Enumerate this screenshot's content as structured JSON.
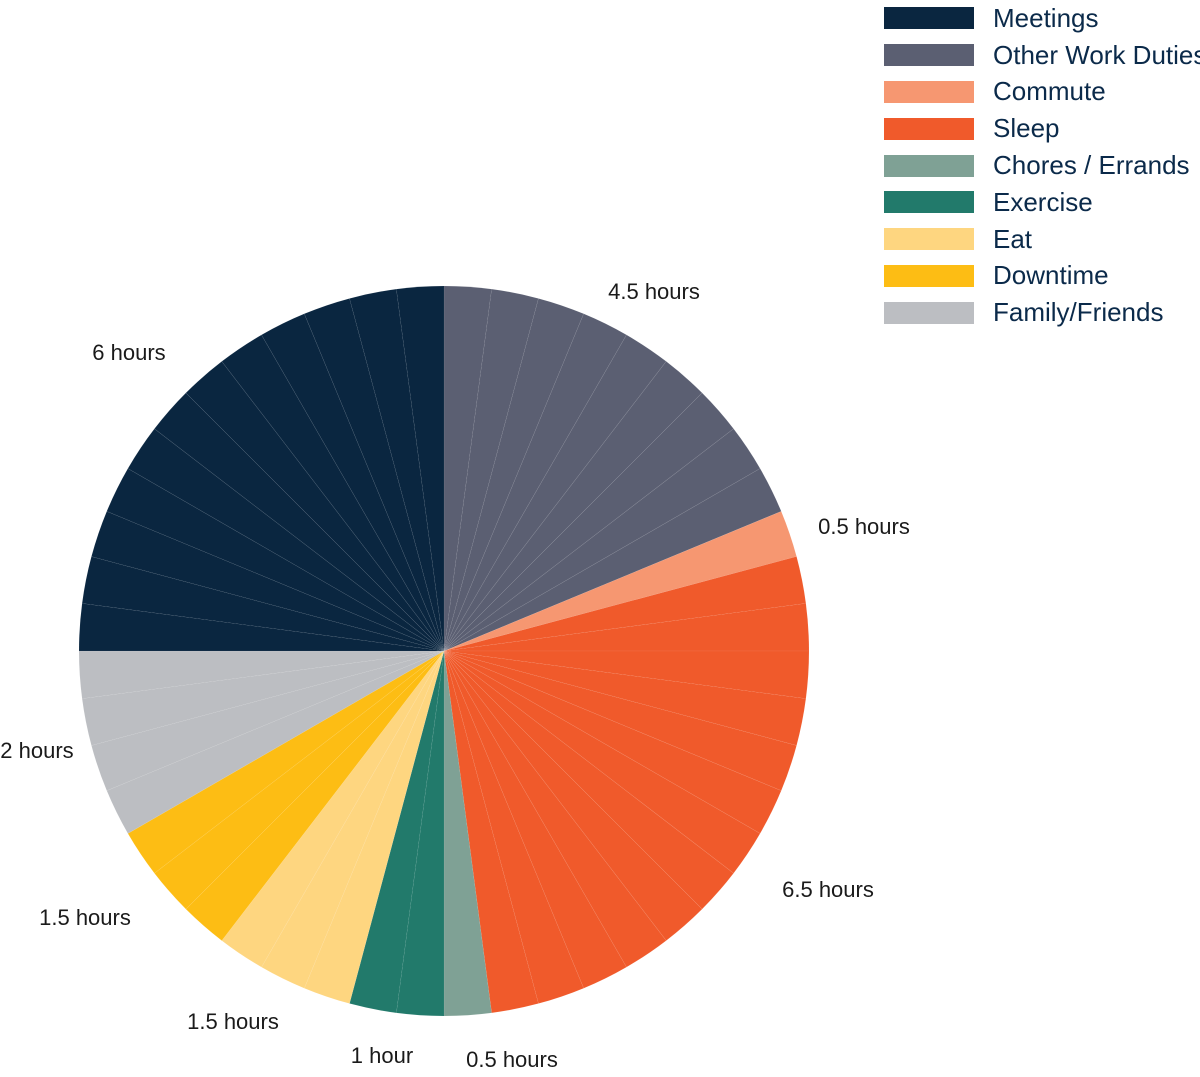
{
  "chart_data": {
    "type": "pie",
    "unit": "hours",
    "start_angle_deg": 0,
    "direction": "clockwise",
    "sub_slice_hours": 0.5,
    "legend_position": "top-right",
    "slices": [
      {
        "name": "Other Work Duties",
        "value": 4.5,
        "color": "#5b5f72",
        "label": "4.5 hours"
      },
      {
        "name": "Commute",
        "value": 0.5,
        "color": "#f69771",
        "label": "0.5 hours"
      },
      {
        "name": "Sleep",
        "value": 6.5,
        "color": "#f05a2b",
        "label": "6.5 hours"
      },
      {
        "name": "Chores / Errands",
        "value": 0.5,
        "color": "#7fa195",
        "label": "0.5 hours"
      },
      {
        "name": "Exercise",
        "value": 1,
        "color": "#227a6b",
        "label": "1 hour"
      },
      {
        "name": "Eat",
        "value": 1.5,
        "color": "#fed680",
        "label": "1.5 hours"
      },
      {
        "name": "Downtime",
        "value": 1.5,
        "color": "#fdbd14",
        "label": "1.5 hours"
      },
      {
        "name": "Family/Friends",
        "value": 2,
        "color": "#bcbec2",
        "label": "2 hours"
      },
      {
        "name": "Meetings",
        "value": 6,
        "color": "#0a2640",
        "label": "6 hours"
      }
    ],
    "legend": [
      {
        "name": "Meetings",
        "color": "#0a2640"
      },
      {
        "name": "Other Work Duties",
        "color": "#5b5f72"
      },
      {
        "name": "Commute",
        "color": "#f69771"
      },
      {
        "name": "Sleep",
        "color": "#f05a2b"
      },
      {
        "name": "Chores / Errands",
        "color": "#7fa195"
      },
      {
        "name": "Exercise",
        "color": "#227a6b"
      },
      {
        "name": "Eat",
        "color": "#fed680"
      },
      {
        "name": "Downtime",
        "color": "#fdbd14"
      },
      {
        "name": "Family/Friends",
        "color": "#bcbec2"
      }
    ]
  }
}
